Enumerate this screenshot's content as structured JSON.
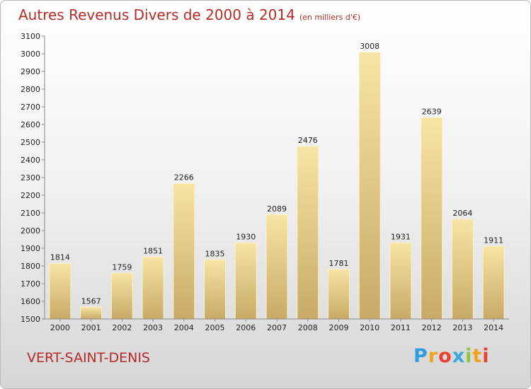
{
  "header": {
    "title": "Autres Revenus Divers de 2000 à 2014",
    "unit": "(en milliers d'€)"
  },
  "footer": {
    "city": "VERT-SAINT-DENIS",
    "brand_letters": [
      "P",
      "r",
      "o",
      "x",
      "i",
      "t",
      "i"
    ]
  },
  "colors": {
    "title": "#b52b27",
    "bar_light": "#f7e4a4",
    "bar_dark": "#c8aa66",
    "brand": [
      "#2e9ee0",
      "#f2a31b",
      "#e8412f",
      "#3aa7dd",
      "#8dc63f",
      "#f2a31b",
      "#e8412f"
    ]
  },
  "chart_data": {
    "type": "bar",
    "title": "Autres Revenus Divers de 2000 à 2014",
    "subtitle": "(en milliers d'€)",
    "categories": [
      "2000",
      "2001",
      "2002",
      "2003",
      "2004",
      "2005",
      "2006",
      "2007",
      "2008",
      "2009",
      "2010",
      "2011",
      "2012",
      "2013",
      "2014"
    ],
    "values": [
      1814,
      1567,
      1759,
      1851,
      2266,
      1835,
      1930,
      2089,
      2476,
      1781,
      3008,
      1931,
      2639,
      2064,
      1911
    ],
    "ylim": [
      1500,
      3100
    ],
    "yticks": [
      1500,
      1600,
      1700,
      1800,
      1900,
      2000,
      2100,
      2200,
      2300,
      2400,
      2500,
      2600,
      2700,
      2800,
      2900,
      3000,
      3100
    ],
    "grid": false,
    "data_labels": true
  }
}
